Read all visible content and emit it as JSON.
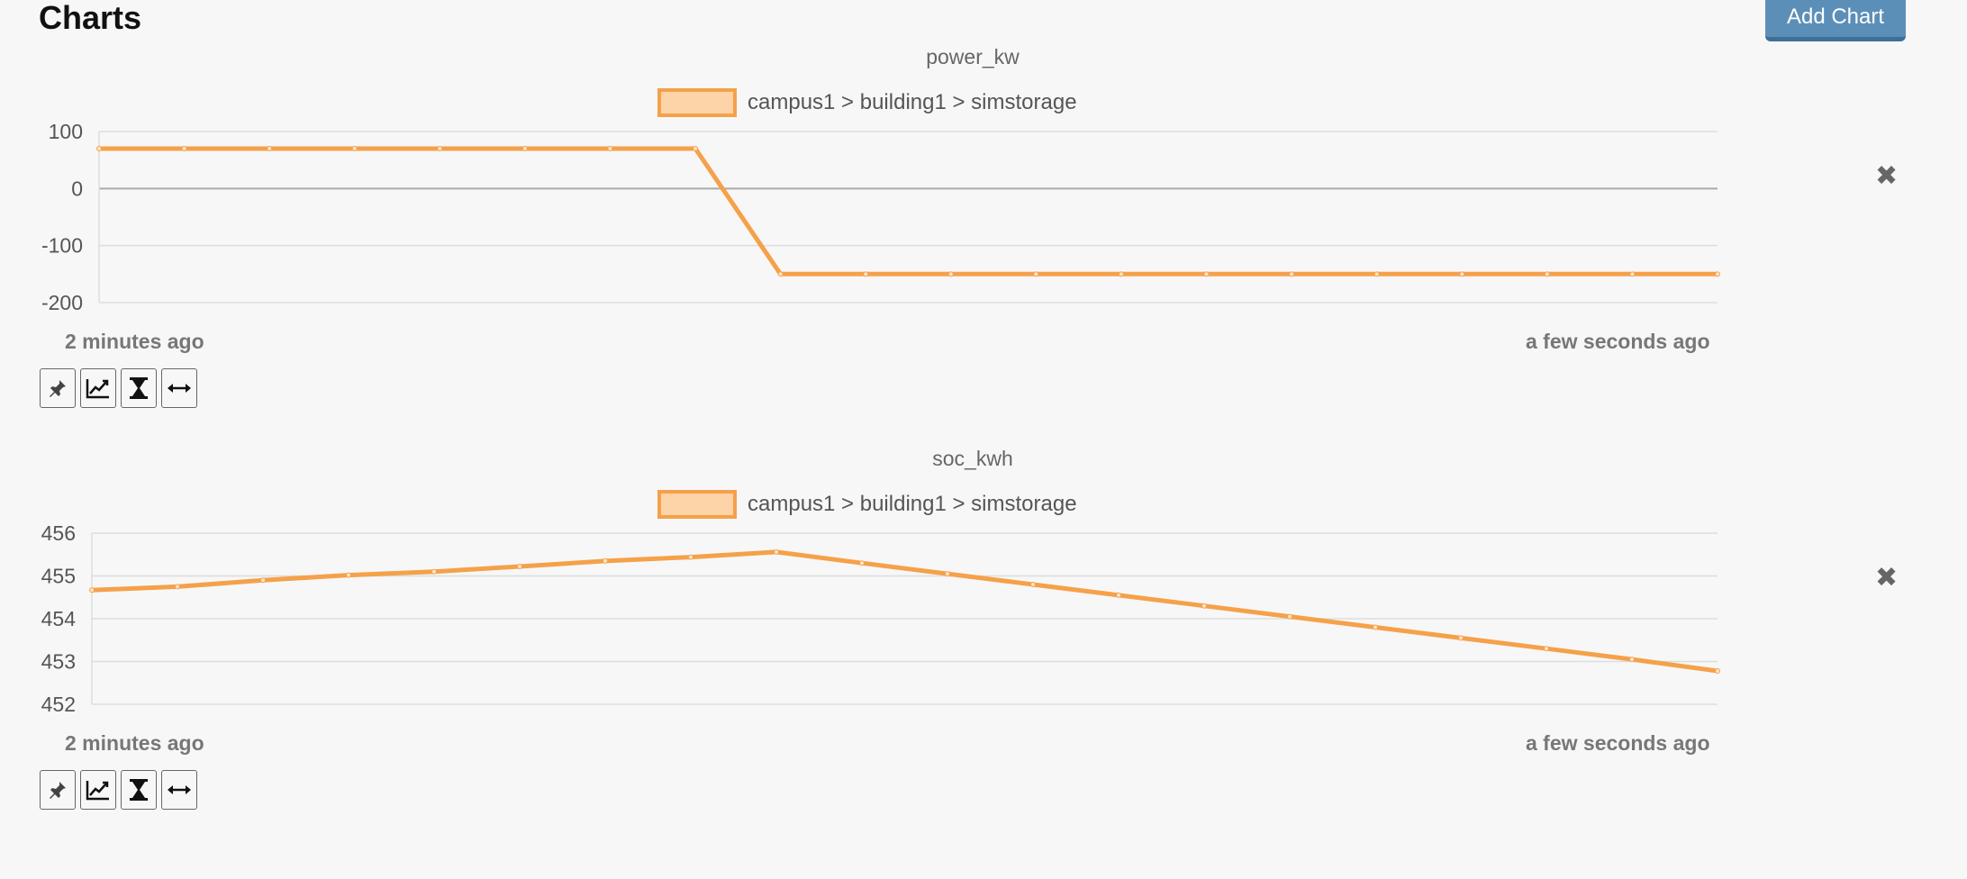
{
  "page": {
    "title": "Charts",
    "add_chart_label": "Add Chart"
  },
  "colors": {
    "series": "#f5a14a",
    "legend_fill": "#fdd3a8",
    "button": "#5c8fb8"
  },
  "charts": [
    {
      "title": "power_kw",
      "legend_label": "campus1 > building1 > simstorage",
      "start_label": "2 minutes ago",
      "end_label": "a few seconds ago",
      "close_icon": "close-icon",
      "tools": [
        "pin-icon",
        "line-chart-icon",
        "hourglass-icon",
        "resize-icon"
      ]
    },
    {
      "title": "soc_kwh",
      "legend_label": "campus1 > building1 > simstorage",
      "start_label": "2 minutes ago",
      "end_label": "a few seconds ago",
      "close_icon": "close-icon",
      "tools": [
        "pin-icon",
        "line-chart-icon",
        "hourglass-icon",
        "resize-icon"
      ]
    }
  ],
  "chart_data": [
    {
      "type": "line",
      "title": "power_kw",
      "series": [
        {
          "name": "campus1 > building1 > simstorage",
          "values": [
            70,
            70,
            70,
            70,
            70,
            70,
            70,
            70,
            -150,
            -150,
            -150,
            -150,
            -150,
            -150,
            -150,
            -150,
            -150,
            -150,
            -150,
            -150
          ]
        }
      ],
      "yticks": [
        100,
        0,
        -100,
        -200
      ],
      "ylim": [
        -200,
        100
      ],
      "x_start_label": "2 minutes ago",
      "x_end_label": "a few seconds ago",
      "grid": true
    },
    {
      "type": "line",
      "title": "soc_kwh",
      "series": [
        {
          "name": "campus1 > building1 > simstorage",
          "values": [
            454.67,
            454.75,
            454.9,
            455.02,
            455.1,
            455.22,
            455.35,
            455.44,
            455.56,
            455.3,
            455.05,
            454.8,
            454.55,
            454.3,
            454.05,
            453.8,
            453.55,
            453.3,
            453.05,
            452.78
          ]
        }
      ],
      "yticks": [
        456,
        455,
        454,
        453,
        452
      ],
      "ylim": [
        452,
        456
      ],
      "x_start_label": "2 minutes ago",
      "x_end_label": "a few seconds ago",
      "grid": true
    }
  ]
}
